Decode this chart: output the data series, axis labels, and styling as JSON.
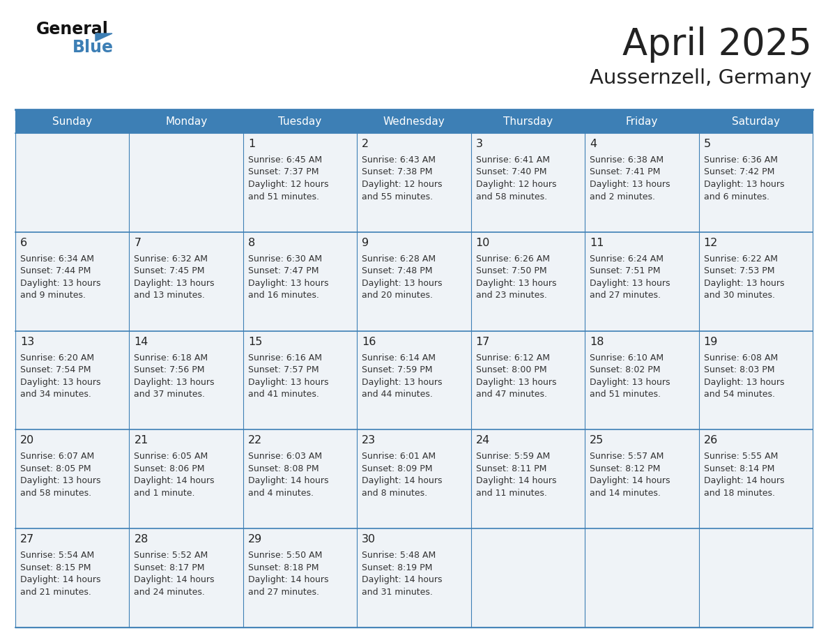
{
  "title": "April 2025",
  "subtitle": "Aussernzell, Germany",
  "header_bg_color": "#3d7fb5",
  "header_text_color": "#ffffff",
  "cell_bg_color": "#eff3f7",
  "cell_bg_empty_row1": "#eff3f7",
  "grid_line_color": "#3d7fb5",
  "title_color": "#222222",
  "subtitle_color": "#222222",
  "day_number_color": "#222222",
  "cell_text_color": "#333333",
  "logo_general_color": "#111111",
  "logo_blue_color": "#3d7fb5",
  "day_headers": [
    "Sunday",
    "Monday",
    "Tuesday",
    "Wednesday",
    "Thursday",
    "Friday",
    "Saturday"
  ],
  "weeks": [
    [
      {
        "day": null,
        "sunrise": null,
        "sunset": null,
        "daylight_line1": null,
        "daylight_line2": null
      },
      {
        "day": null,
        "sunrise": null,
        "sunset": null,
        "daylight_line1": null,
        "daylight_line2": null
      },
      {
        "day": 1,
        "sunrise": "6:45 AM",
        "sunset": "7:37 PM",
        "daylight_line1": "Daylight: 12 hours",
        "daylight_line2": "and 51 minutes."
      },
      {
        "day": 2,
        "sunrise": "6:43 AM",
        "sunset": "7:38 PM",
        "daylight_line1": "Daylight: 12 hours",
        "daylight_line2": "and 55 minutes."
      },
      {
        "day": 3,
        "sunrise": "6:41 AM",
        "sunset": "7:40 PM",
        "daylight_line1": "Daylight: 12 hours",
        "daylight_line2": "and 58 minutes."
      },
      {
        "day": 4,
        "sunrise": "6:38 AM",
        "sunset": "7:41 PM",
        "daylight_line1": "Daylight: 13 hours",
        "daylight_line2": "and 2 minutes."
      },
      {
        "day": 5,
        "sunrise": "6:36 AM",
        "sunset": "7:42 PM",
        "daylight_line1": "Daylight: 13 hours",
        "daylight_line2": "and 6 minutes."
      }
    ],
    [
      {
        "day": 6,
        "sunrise": "6:34 AM",
        "sunset": "7:44 PM",
        "daylight_line1": "Daylight: 13 hours",
        "daylight_line2": "and 9 minutes."
      },
      {
        "day": 7,
        "sunrise": "6:32 AM",
        "sunset": "7:45 PM",
        "daylight_line1": "Daylight: 13 hours",
        "daylight_line2": "and 13 minutes."
      },
      {
        "day": 8,
        "sunrise": "6:30 AM",
        "sunset": "7:47 PM",
        "daylight_line1": "Daylight: 13 hours",
        "daylight_line2": "and 16 minutes."
      },
      {
        "day": 9,
        "sunrise": "6:28 AM",
        "sunset": "7:48 PM",
        "daylight_line1": "Daylight: 13 hours",
        "daylight_line2": "and 20 minutes."
      },
      {
        "day": 10,
        "sunrise": "6:26 AM",
        "sunset": "7:50 PM",
        "daylight_line1": "Daylight: 13 hours",
        "daylight_line2": "and 23 minutes."
      },
      {
        "day": 11,
        "sunrise": "6:24 AM",
        "sunset": "7:51 PM",
        "daylight_line1": "Daylight: 13 hours",
        "daylight_line2": "and 27 minutes."
      },
      {
        "day": 12,
        "sunrise": "6:22 AM",
        "sunset": "7:53 PM",
        "daylight_line1": "Daylight: 13 hours",
        "daylight_line2": "and 30 minutes."
      }
    ],
    [
      {
        "day": 13,
        "sunrise": "6:20 AM",
        "sunset": "7:54 PM",
        "daylight_line1": "Daylight: 13 hours",
        "daylight_line2": "and 34 minutes."
      },
      {
        "day": 14,
        "sunrise": "6:18 AM",
        "sunset": "7:56 PM",
        "daylight_line1": "Daylight: 13 hours",
        "daylight_line2": "and 37 minutes."
      },
      {
        "day": 15,
        "sunrise": "6:16 AM",
        "sunset": "7:57 PM",
        "daylight_line1": "Daylight: 13 hours",
        "daylight_line2": "and 41 minutes."
      },
      {
        "day": 16,
        "sunrise": "6:14 AM",
        "sunset": "7:59 PM",
        "daylight_line1": "Daylight: 13 hours",
        "daylight_line2": "and 44 minutes."
      },
      {
        "day": 17,
        "sunrise": "6:12 AM",
        "sunset": "8:00 PM",
        "daylight_line1": "Daylight: 13 hours",
        "daylight_line2": "and 47 minutes."
      },
      {
        "day": 18,
        "sunrise": "6:10 AM",
        "sunset": "8:02 PM",
        "daylight_line1": "Daylight: 13 hours",
        "daylight_line2": "and 51 minutes."
      },
      {
        "day": 19,
        "sunrise": "6:08 AM",
        "sunset": "8:03 PM",
        "daylight_line1": "Daylight: 13 hours",
        "daylight_line2": "and 54 minutes."
      }
    ],
    [
      {
        "day": 20,
        "sunrise": "6:07 AM",
        "sunset": "8:05 PM",
        "daylight_line1": "Daylight: 13 hours",
        "daylight_line2": "and 58 minutes."
      },
      {
        "day": 21,
        "sunrise": "6:05 AM",
        "sunset": "8:06 PM",
        "daylight_line1": "Daylight: 14 hours",
        "daylight_line2": "and 1 minute."
      },
      {
        "day": 22,
        "sunrise": "6:03 AM",
        "sunset": "8:08 PM",
        "daylight_line1": "Daylight: 14 hours",
        "daylight_line2": "and 4 minutes."
      },
      {
        "day": 23,
        "sunrise": "6:01 AM",
        "sunset": "8:09 PM",
        "daylight_line1": "Daylight: 14 hours",
        "daylight_line2": "and 8 minutes."
      },
      {
        "day": 24,
        "sunrise": "5:59 AM",
        "sunset": "8:11 PM",
        "daylight_line1": "Daylight: 14 hours",
        "daylight_line2": "and 11 minutes."
      },
      {
        "day": 25,
        "sunrise": "5:57 AM",
        "sunset": "8:12 PM",
        "daylight_line1": "Daylight: 14 hours",
        "daylight_line2": "and 14 minutes."
      },
      {
        "day": 26,
        "sunrise": "5:55 AM",
        "sunset": "8:14 PM",
        "daylight_line1": "Daylight: 14 hours",
        "daylight_line2": "and 18 minutes."
      }
    ],
    [
      {
        "day": 27,
        "sunrise": "5:54 AM",
        "sunset": "8:15 PM",
        "daylight_line1": "Daylight: 14 hours",
        "daylight_line2": "and 21 minutes."
      },
      {
        "day": 28,
        "sunrise": "5:52 AM",
        "sunset": "8:17 PM",
        "daylight_line1": "Daylight: 14 hours",
        "daylight_line2": "and 24 minutes."
      },
      {
        "day": 29,
        "sunrise": "5:50 AM",
        "sunset": "8:18 PM",
        "daylight_line1": "Daylight: 14 hours",
        "daylight_line2": "and 27 minutes."
      },
      {
        "day": 30,
        "sunrise": "5:48 AM",
        "sunset": "8:19 PM",
        "daylight_line1": "Daylight: 14 hours",
        "daylight_line2": "and 31 minutes."
      },
      {
        "day": null,
        "sunrise": null,
        "sunset": null,
        "daylight_line1": null,
        "daylight_line2": null
      },
      {
        "day": null,
        "sunrise": null,
        "sunset": null,
        "daylight_line1": null,
        "daylight_line2": null
      },
      {
        "day": null,
        "sunrise": null,
        "sunset": null,
        "daylight_line1": null,
        "daylight_line2": null
      }
    ]
  ]
}
